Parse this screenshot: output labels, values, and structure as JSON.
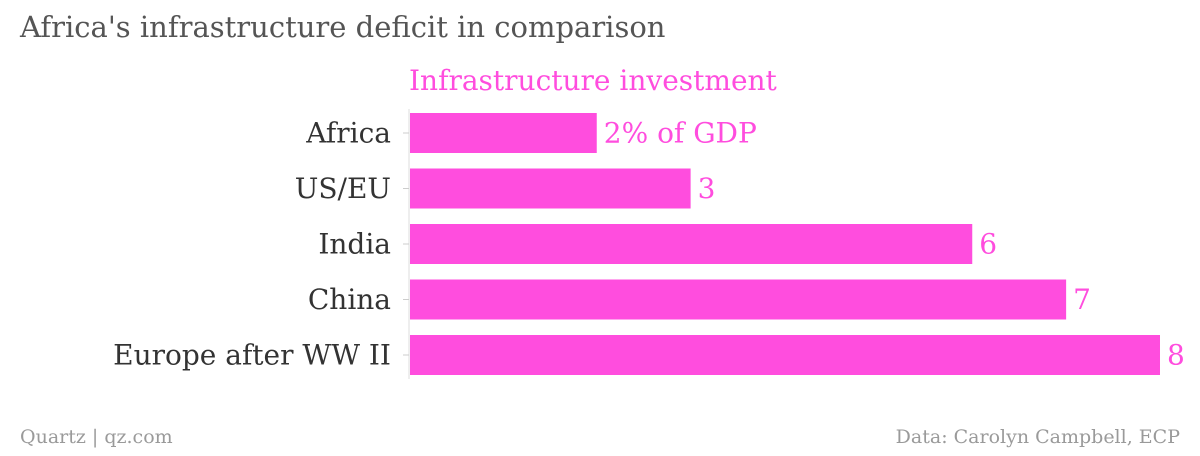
{
  "title": "Africa's infrastructure deficit in comparison",
  "source": "Data: Carolyn Campbell, ECP",
  "credit": "Quartz | qz.com",
  "colors": {
    "bar": "#ff4dde",
    "label": "#ff4dde",
    "text": "#333333",
    "muted": "#9a9a9a"
  },
  "chart_data": {
    "type": "bar",
    "orientation": "horizontal",
    "series_title": "Infrastructure investment",
    "categories": [
      "Africa",
      "US/EU",
      "India",
      "China",
      "Europe after WW II"
    ],
    "values": [
      2,
      3,
      6,
      7,
      8
    ],
    "value_labels": [
      "2% of GDP",
      "3",
      "6",
      "7",
      "8"
    ],
    "xlim": [
      0,
      8
    ],
    "grid": false,
    "legend": "none"
  }
}
